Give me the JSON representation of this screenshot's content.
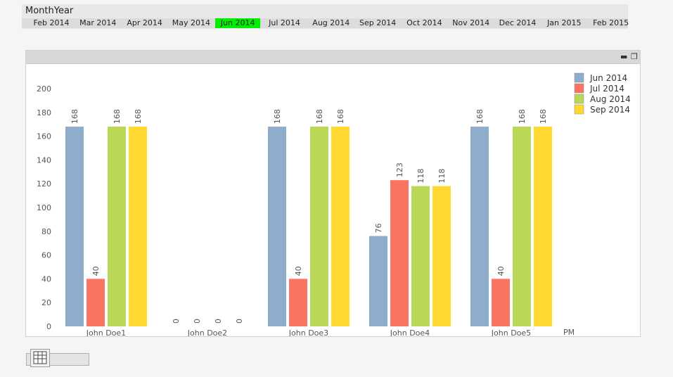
{
  "filter": {
    "title": "MonthYear",
    "items": [
      "Feb 2014",
      "Mar 2014",
      "Apr 2014",
      "May 2014",
      "Jun 2014",
      "Jul 2014",
      "Aug 2014",
      "Sep 2014",
      "Oct 2014",
      "Nov 2014",
      "Dec 2014",
      "Jan 2015",
      "Feb 2015"
    ],
    "selected": "Jun 2014",
    "selected_color": "#00ee00"
  },
  "window": {
    "minimize_icon": "minimize-icon",
    "maximize_icon": "maximize-icon"
  },
  "toolbar": {
    "table_icon": "table-icon"
  },
  "chart_data": {
    "type": "bar",
    "categories": [
      "John Doe1",
      "John Doe2",
      "John Doe3",
      "John Doe4",
      "John Doe5"
    ],
    "series": [
      {
        "name": "Jun 2014",
        "color": "#8eaccb",
        "values": [
          168,
          0,
          168,
          76,
          168
        ]
      },
      {
        "name": "Jul 2014",
        "color": "#fa7462",
        "values": [
          40,
          0,
          40,
          123,
          40
        ]
      },
      {
        "name": "Aug 2014",
        "color": "#bad756",
        "values": [
          168,
          0,
          168,
          118,
          168
        ]
      },
      {
        "name": "Sep 2014",
        "color": "#ffd92f",
        "values": [
          168,
          0,
          168,
          118,
          168
        ]
      }
    ],
    "xlabel": "PM",
    "ylabel": "",
    "ylim": [
      0,
      200
    ],
    "yticks": [
      0,
      20,
      40,
      60,
      80,
      100,
      120,
      140,
      160,
      180,
      200
    ],
    "grid": false,
    "legend": "top-right",
    "data_labels": true
  }
}
